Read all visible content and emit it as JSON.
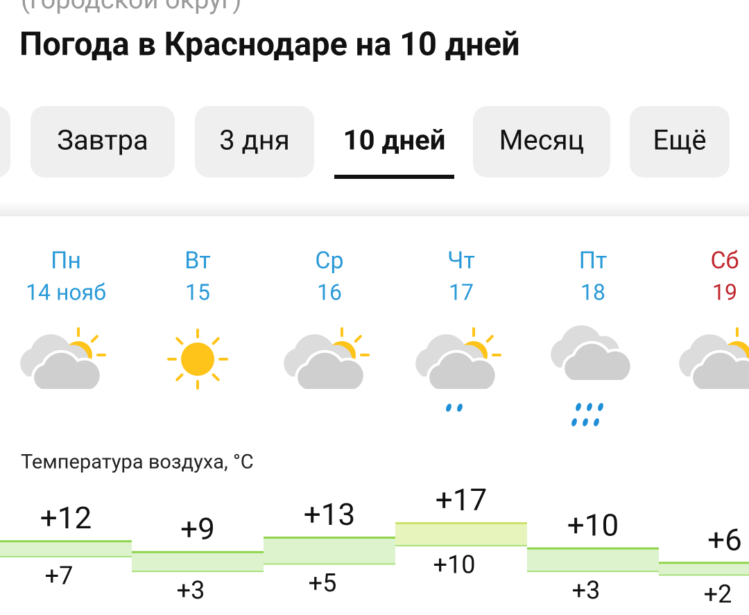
{
  "header": {
    "location": "(городской округ)",
    "title": "Погода в Краснодаре на 10 дней"
  },
  "tabs": [
    "Завтра",
    "3 дня",
    "10 дней",
    "Месяц",
    "Ещё"
  ],
  "selected_tab": 2,
  "temperature_label": "Температура воздуха, °C",
  "days": [
    {
      "weekday": "Пн",
      "date": "14 нояб",
      "max": 12,
      "max_label": "+12",
      "min": 7,
      "min_label": "+7",
      "color": "#2a9ad8"
    },
    {
      "weekday": "Вт",
      "date": "15",
      "max": 9,
      "max_label": "+9",
      "min": 3,
      "min_label": "+3",
      "color": "#2a9ad8"
    },
    {
      "weekday": "Ср",
      "date": "16",
      "max": 13,
      "max_label": "+13",
      "min": 5,
      "min_label": "+5",
      "color": "#2a9ad8"
    },
    {
      "weekday": "Чт",
      "date": "17",
      "max": 17,
      "max_label": "+17",
      "min": 10,
      "min_label": "+10",
      "color": "#2a9ad8"
    },
    {
      "weekday": "Пт",
      "date": "18",
      "max": 10,
      "max_label": "+10",
      "min": 3,
      "min_label": "+3",
      "color": "#2a9ad8"
    },
    {
      "weekday": "Сб",
      "date": "19",
      "max": 6,
      "max_label": "+6",
      "min": 2,
      "min_label": "+2",
      "color": "#c0262d"
    }
  ]
}
